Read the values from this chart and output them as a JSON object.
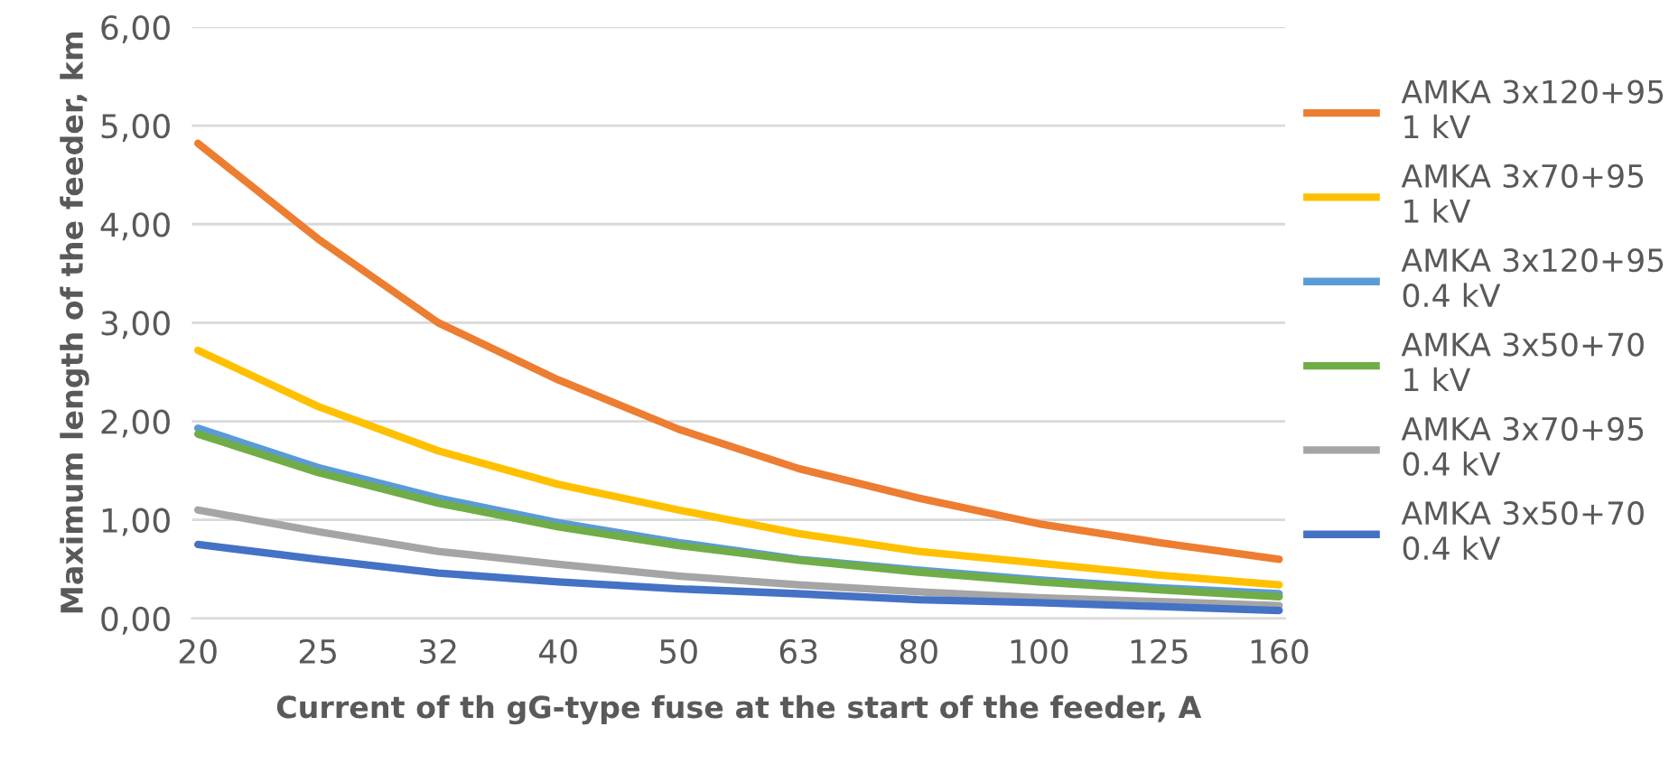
{
  "chart_data": {
    "type": "line",
    "xlabel": "Current of th gG-type fuse at the start of the feeder, A",
    "ylabel": "Maximum length of the feeder, km",
    "categories": [
      "20",
      "25",
      "32",
      "40",
      "50",
      "63",
      "80",
      "100",
      "125",
      "160"
    ],
    "series": [
      {
        "name": "AMKA 3x120+95\n1 kV",
        "color": "#ed7d31",
        "values": [
          4.82,
          3.85,
          3.0,
          2.42,
          1.92,
          1.52,
          1.22,
          0.96,
          0.77,
          0.6
        ]
      },
      {
        "name": "AMKA 3x70+95\n1 kV",
        "color": "#ffc000",
        "values": [
          2.72,
          2.15,
          1.7,
          1.36,
          1.1,
          0.86,
          0.68,
          0.56,
          0.44,
          0.34
        ]
      },
      {
        "name": "AMKA 3x120+95\n0.4 kV",
        "color": "#5b9bd5",
        "values": [
          1.93,
          1.53,
          1.22,
          0.97,
          0.77,
          0.6,
          0.49,
          0.39,
          0.31,
          0.25
        ]
      },
      {
        "name": "AMKA 3x50+70\n1 kV",
        "color": "#70ad47",
        "values": [
          1.87,
          1.48,
          1.17,
          0.93,
          0.74,
          0.59,
          0.47,
          0.37,
          0.29,
          0.22
        ]
      },
      {
        "name": "AMKA 3x70+95\n0.4 kV",
        "color": "#a5a5a5",
        "values": [
          1.1,
          0.88,
          0.68,
          0.55,
          0.43,
          0.34,
          0.27,
          0.21,
          0.17,
          0.13
        ]
      },
      {
        "name": "AMKA 3x50+70\n0.4 kV",
        "color": "#4472c4",
        "values": [
          0.75,
          0.6,
          0.46,
          0.37,
          0.3,
          0.25,
          0.19,
          0.16,
          0.12,
          0.08
        ]
      }
    ],
    "ylim": [
      0,
      6
    ],
    "yticks": [
      {
        "value": 0,
        "label": "0,00"
      },
      {
        "value": 1,
        "label": "1,00"
      },
      {
        "value": 2,
        "label": "2,00"
      },
      {
        "value": 3,
        "label": "3,00"
      },
      {
        "value": 4,
        "label": "4,00"
      },
      {
        "value": 5,
        "label": "5,00"
      },
      {
        "value": 6,
        "label": "6,00"
      }
    ],
    "grid": "y",
    "legend": "right",
    "marker": "none",
    "line_style": "solid"
  }
}
